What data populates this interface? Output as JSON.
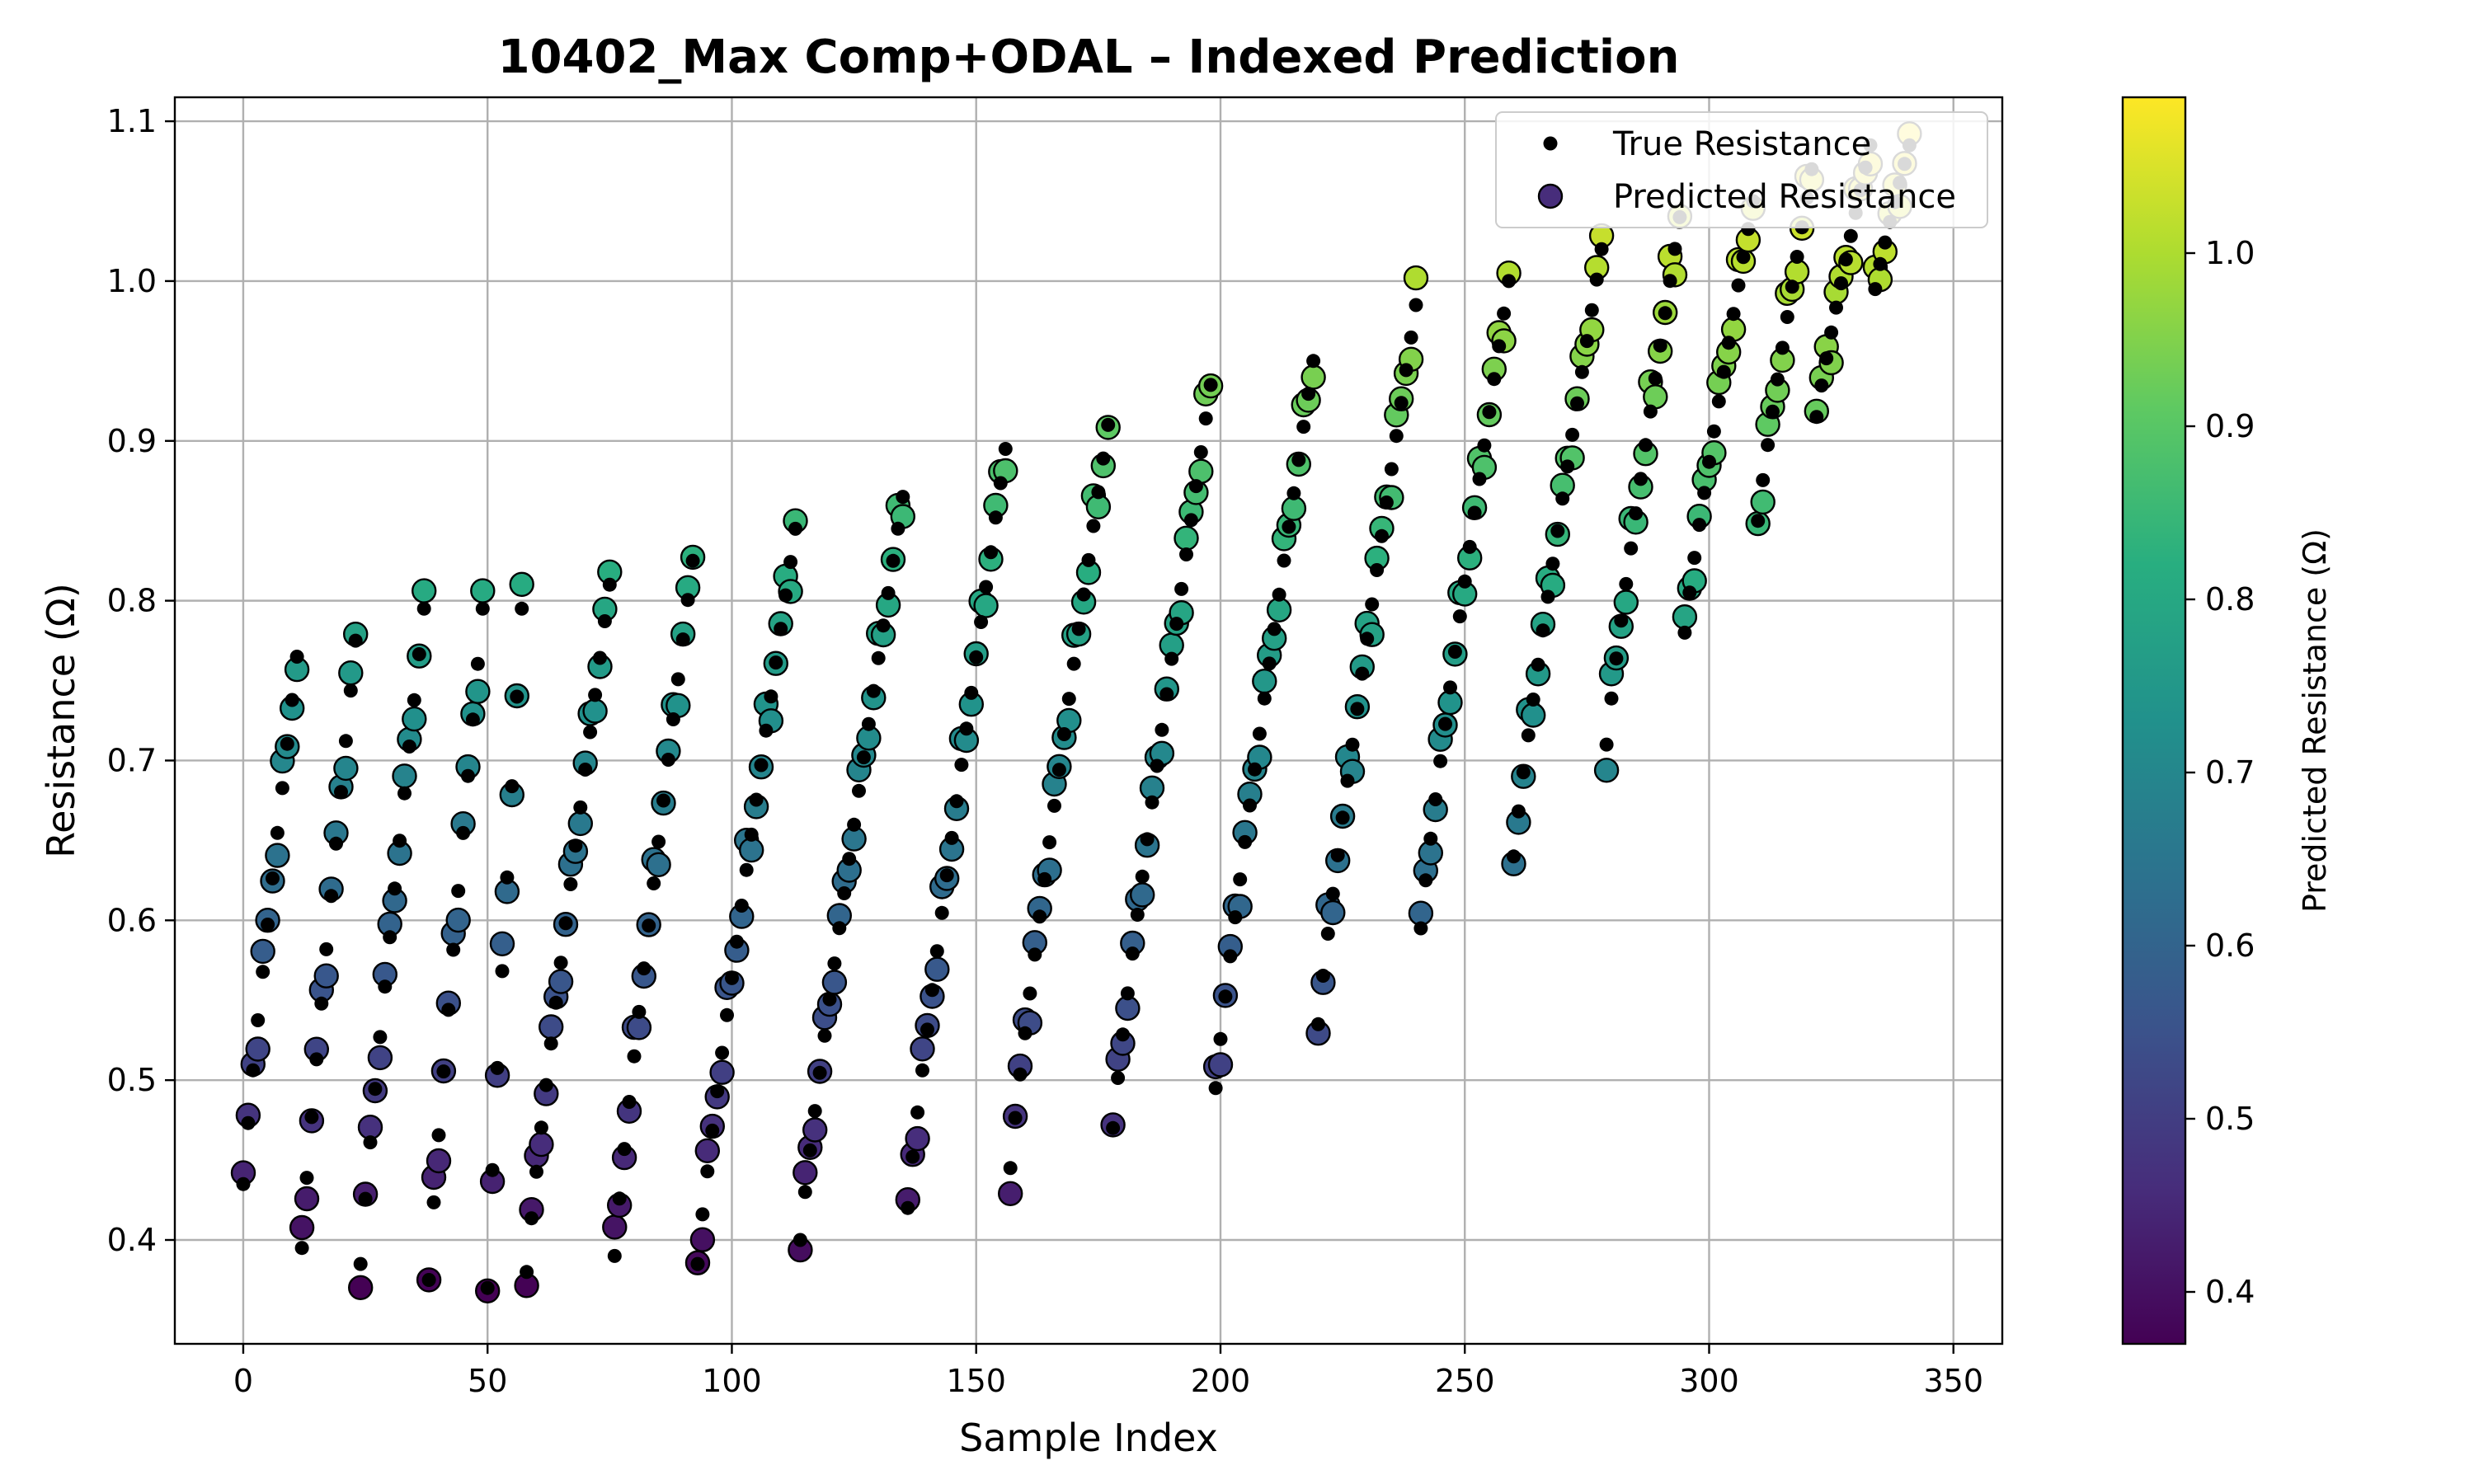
{
  "chart_data": {
    "type": "scatter",
    "title": "10402_Max Comp+ODAL – Indexed Prediction",
    "xlabel": "Sample Index",
    "ylabel": "Resistance (Ω)",
    "colorbar_label": "Predicted Resistance (Ω)",
    "colormap": "viridis",
    "colorbar_range": [
      0.37,
      1.09
    ],
    "colorbar_ticks": [
      "0.4",
      "0.5",
      "0.6",
      "0.7",
      "0.8",
      "0.9",
      "1.0"
    ],
    "xlim": [
      -14,
      360
    ],
    "ylim": [
      0.335,
      1.115
    ],
    "xticks": [
      "0",
      "50",
      "100",
      "150",
      "200",
      "250",
      "300",
      "350"
    ],
    "yticks": [
      "0.4",
      "0.5",
      "0.6",
      "0.7",
      "0.8",
      "0.9",
      "1.0",
      "1.1"
    ],
    "grid": true,
    "legend_position": "top-right",
    "series": [
      {
        "name": "True Resistance",
        "marker": "small black dot"
      },
      {
        "name": "Predicted Resistance",
        "marker": "large colormap circle"
      }
    ],
    "groups": [
      {
        "start": 0,
        "min": 0.435,
        "max": 0.765
      },
      {
        "start": 12,
        "min": 0.395,
        "max": 0.775
      },
      {
        "start": 24,
        "min": 0.385,
        "max": 0.795
      },
      {
        "start": 38,
        "min": 0.375,
        "max": 0.795
      },
      {
        "start": 50,
        "min": 0.37,
        "max": 0.795
      },
      {
        "start": 58,
        "min": 0.38,
        "max": 0.81
      },
      {
        "start": 76,
        "min": 0.39,
        "max": 0.825
      },
      {
        "start": 93,
        "min": 0.385,
        "max": 0.845
      },
      {
        "start": 114,
        "min": 0.4,
        "max": 0.865
      },
      {
        "start": 136,
        "min": 0.42,
        "max": 0.895
      },
      {
        "start": 157,
        "min": 0.445,
        "max": 0.91
      },
      {
        "start": 178,
        "min": 0.47,
        "max": 0.935
      },
      {
        "start": 199,
        "min": 0.495,
        "max": 0.95
      },
      {
        "start": 220,
        "min": 0.535,
        "max": 0.985
      },
      {
        "start": 241,
        "min": 0.595,
        "max": 1.0
      },
      {
        "start": 260,
        "min": 0.64,
        "max": 1.02
      },
      {
        "start": 279,
        "min": 0.71,
        "max": 1.04
      },
      {
        "start": 295,
        "min": 0.78,
        "max": 1.05
      },
      {
        "start": 310,
        "min": 0.85,
        "max": 1.07
      },
      {
        "start": 322,
        "min": 0.915,
        "max": 1.085
      },
      {
        "start": 334,
        "min": 0.995,
        "max": 1.085
      }
    ],
    "n_samples": 342
  }
}
